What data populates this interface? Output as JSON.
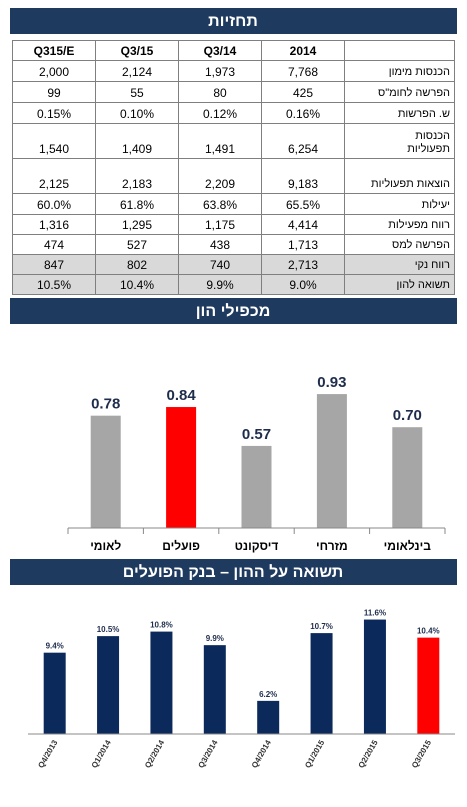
{
  "table": {
    "title": "תחזיות",
    "columns": [
      "2014",
      "Q3/14",
      "Q3/15",
      "Q315/E"
    ],
    "rows": [
      {
        "label": "הכנסות מימון",
        "cells": [
          "7,768",
          "1,973",
          "2,124",
          "2,000"
        ]
      },
      {
        "label": "הפרשה לחומ\"ס",
        "cells": [
          "425",
          "80",
          "55",
          "99"
        ]
      },
      {
        "label": "ש. הפרשות",
        "cells": [
          "0.16%",
          "0.12%",
          "0.10%",
          "0.15%"
        ]
      },
      {
        "label": "הכנסות תפעוליות",
        "cells": [
          "6,254",
          "1,491",
          "1,409",
          "1,540"
        ]
      },
      {
        "label": "הוצאות תפעוליות",
        "cells": [
          "9,183",
          "2,209",
          "2,183",
          "2,125"
        ]
      },
      {
        "label": "יעילות",
        "cells": [
          "65.5%",
          "63.8%",
          "61.8%",
          "60.0%"
        ]
      },
      {
        "label": "רווח מפעילות",
        "cells": [
          "4,414",
          "1,175",
          "1,295",
          "1,316"
        ]
      },
      {
        "label": "הפרשה למס",
        "cells": [
          "1,713",
          "438",
          "527",
          "474"
        ]
      },
      {
        "label": "רווח נקי",
        "cells": [
          "2,713",
          "740",
          "802",
          "847"
        ]
      },
      {
        "label": "תשואה להון",
        "cells": [
          "9.0%",
          "9.9%",
          "10.4%",
          "10.5%"
        ]
      }
    ]
  },
  "chart_data": [
    {
      "type": "bar",
      "title": "מכפילי הון",
      "categories": [
        "לאומי",
        "פועלים",
        "דיסקונט",
        "מזרחי",
        "בינלאומי"
      ],
      "values": [
        0.78,
        0.84,
        0.57,
        0.93,
        0.7
      ],
      "value_labels": [
        "0.78",
        "0.84",
        "0.57",
        "0.93",
        "0.70"
      ],
      "colors": [
        "#a6a6a6",
        "#ff0000",
        "#a6a6a6",
        "#a6a6a6",
        "#a6a6a6"
      ],
      "ylim": [
        0,
        1
      ]
    },
    {
      "type": "bar",
      "title": "תשואה על ההון – בנק הפועלים",
      "categories": [
        "Q4/2013",
        "Q1/2014",
        "Q2/2014",
        "Q3/2014",
        "Q4/2014",
        "Q1/2015",
        "Q2/2015",
        "Q3/2015"
      ],
      "values": [
        9.4,
        10.5,
        10.8,
        9.9,
        6.2,
        10.7,
        11.6,
        10.4
      ],
      "value_labels": [
        "9.4%",
        "10.5%",
        "10.8%",
        "9.9%",
        "6.2%",
        "10.7%",
        "11.6%",
        "10.4%"
      ],
      "colors": [
        "#0b2a5b",
        "#0b2a5b",
        "#0b2a5b",
        "#0b2a5b",
        "#0b2a5b",
        "#0b2a5b",
        "#0b2a5b",
        "#ff0000"
      ],
      "ylim": [
        4,
        12.5
      ]
    }
  ]
}
